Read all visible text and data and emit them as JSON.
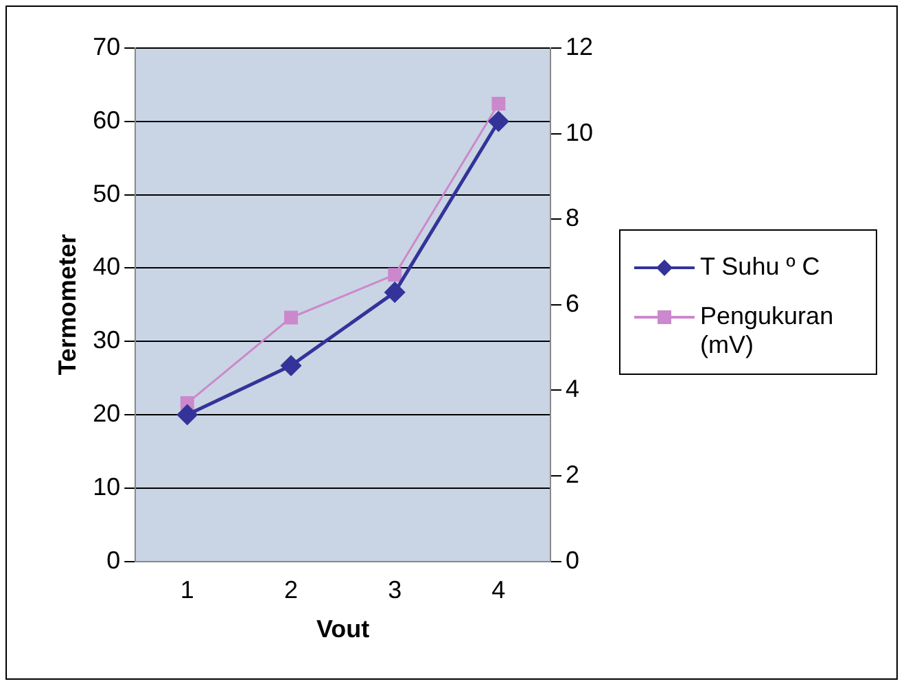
{
  "chart_data": {
    "type": "line",
    "xlabel": "Vout",
    "ylabel": "Termometer",
    "categories": [
      "1",
      "2",
      "3",
      "4"
    ],
    "series": [
      {
        "name": "T Suhu º C",
        "color": "#333399",
        "marker": "diamond",
        "values": [
          20,
          26.7,
          36.7,
          60
        ]
      },
      {
        "name": "Pengukuran (mV)",
        "color": "#cc88cc",
        "marker": "square",
        "axis": "y2",
        "values": [
          3.7,
          5.7,
          6.7,
          10.7
        ]
      }
    ],
    "ylim": [
      0,
      70
    ],
    "yticks": [
      0,
      10,
      20,
      30,
      40,
      50,
      60,
      70
    ],
    "y2lim": [
      0,
      12
    ],
    "y2ticks": [
      0,
      2,
      4,
      6,
      8,
      10,
      12
    ],
    "grid": "y",
    "legend": "right"
  }
}
